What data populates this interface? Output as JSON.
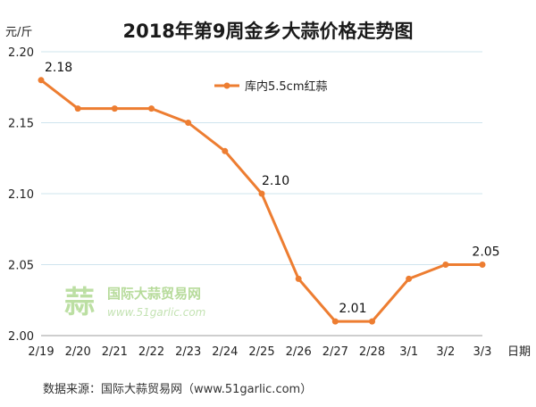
{
  "chart_data": {
    "type": "line",
    "title": "2018年第9周金乡大蒜价格走势图",
    "ylabel": "元/斤",
    "xlabel": "日期",
    "categories": [
      "2/19",
      "2/20",
      "2/21",
      "2/22",
      "2/23",
      "2/24",
      "2/25",
      "2/26",
      "2/27",
      "2/28",
      "3/1",
      "3/2",
      "3/3"
    ],
    "series": [
      {
        "name": "库内5.5cm红蒜",
        "values": [
          2.18,
          2.16,
          2.16,
          2.16,
          2.15,
          2.13,
          2.1,
          2.04,
          2.01,
          2.01,
          2.04,
          2.05,
          2.05
        ]
      }
    ],
    "data_labels": [
      {
        "index": 0,
        "text": "2.18"
      },
      {
        "index": 6,
        "text": "2.10"
      },
      {
        "index": 8,
        "text": "2.01"
      },
      {
        "index": 12,
        "text": "2.05"
      }
    ],
    "ylim": [
      2.0,
      2.2
    ],
    "yticks": [
      "2.00",
      "2.05",
      "2.10",
      "2.15",
      "2.20"
    ],
    "grid": true,
    "legend_position": "top-center",
    "line_color": "#ed7d31"
  },
  "watermark": {
    "logo_glyph": "蒜",
    "name": "国际大蒜贸易网",
    "url": "www.51garlic.com"
  },
  "source": "数据来源：国际大蒜贸易网（www.51garlic.com）"
}
